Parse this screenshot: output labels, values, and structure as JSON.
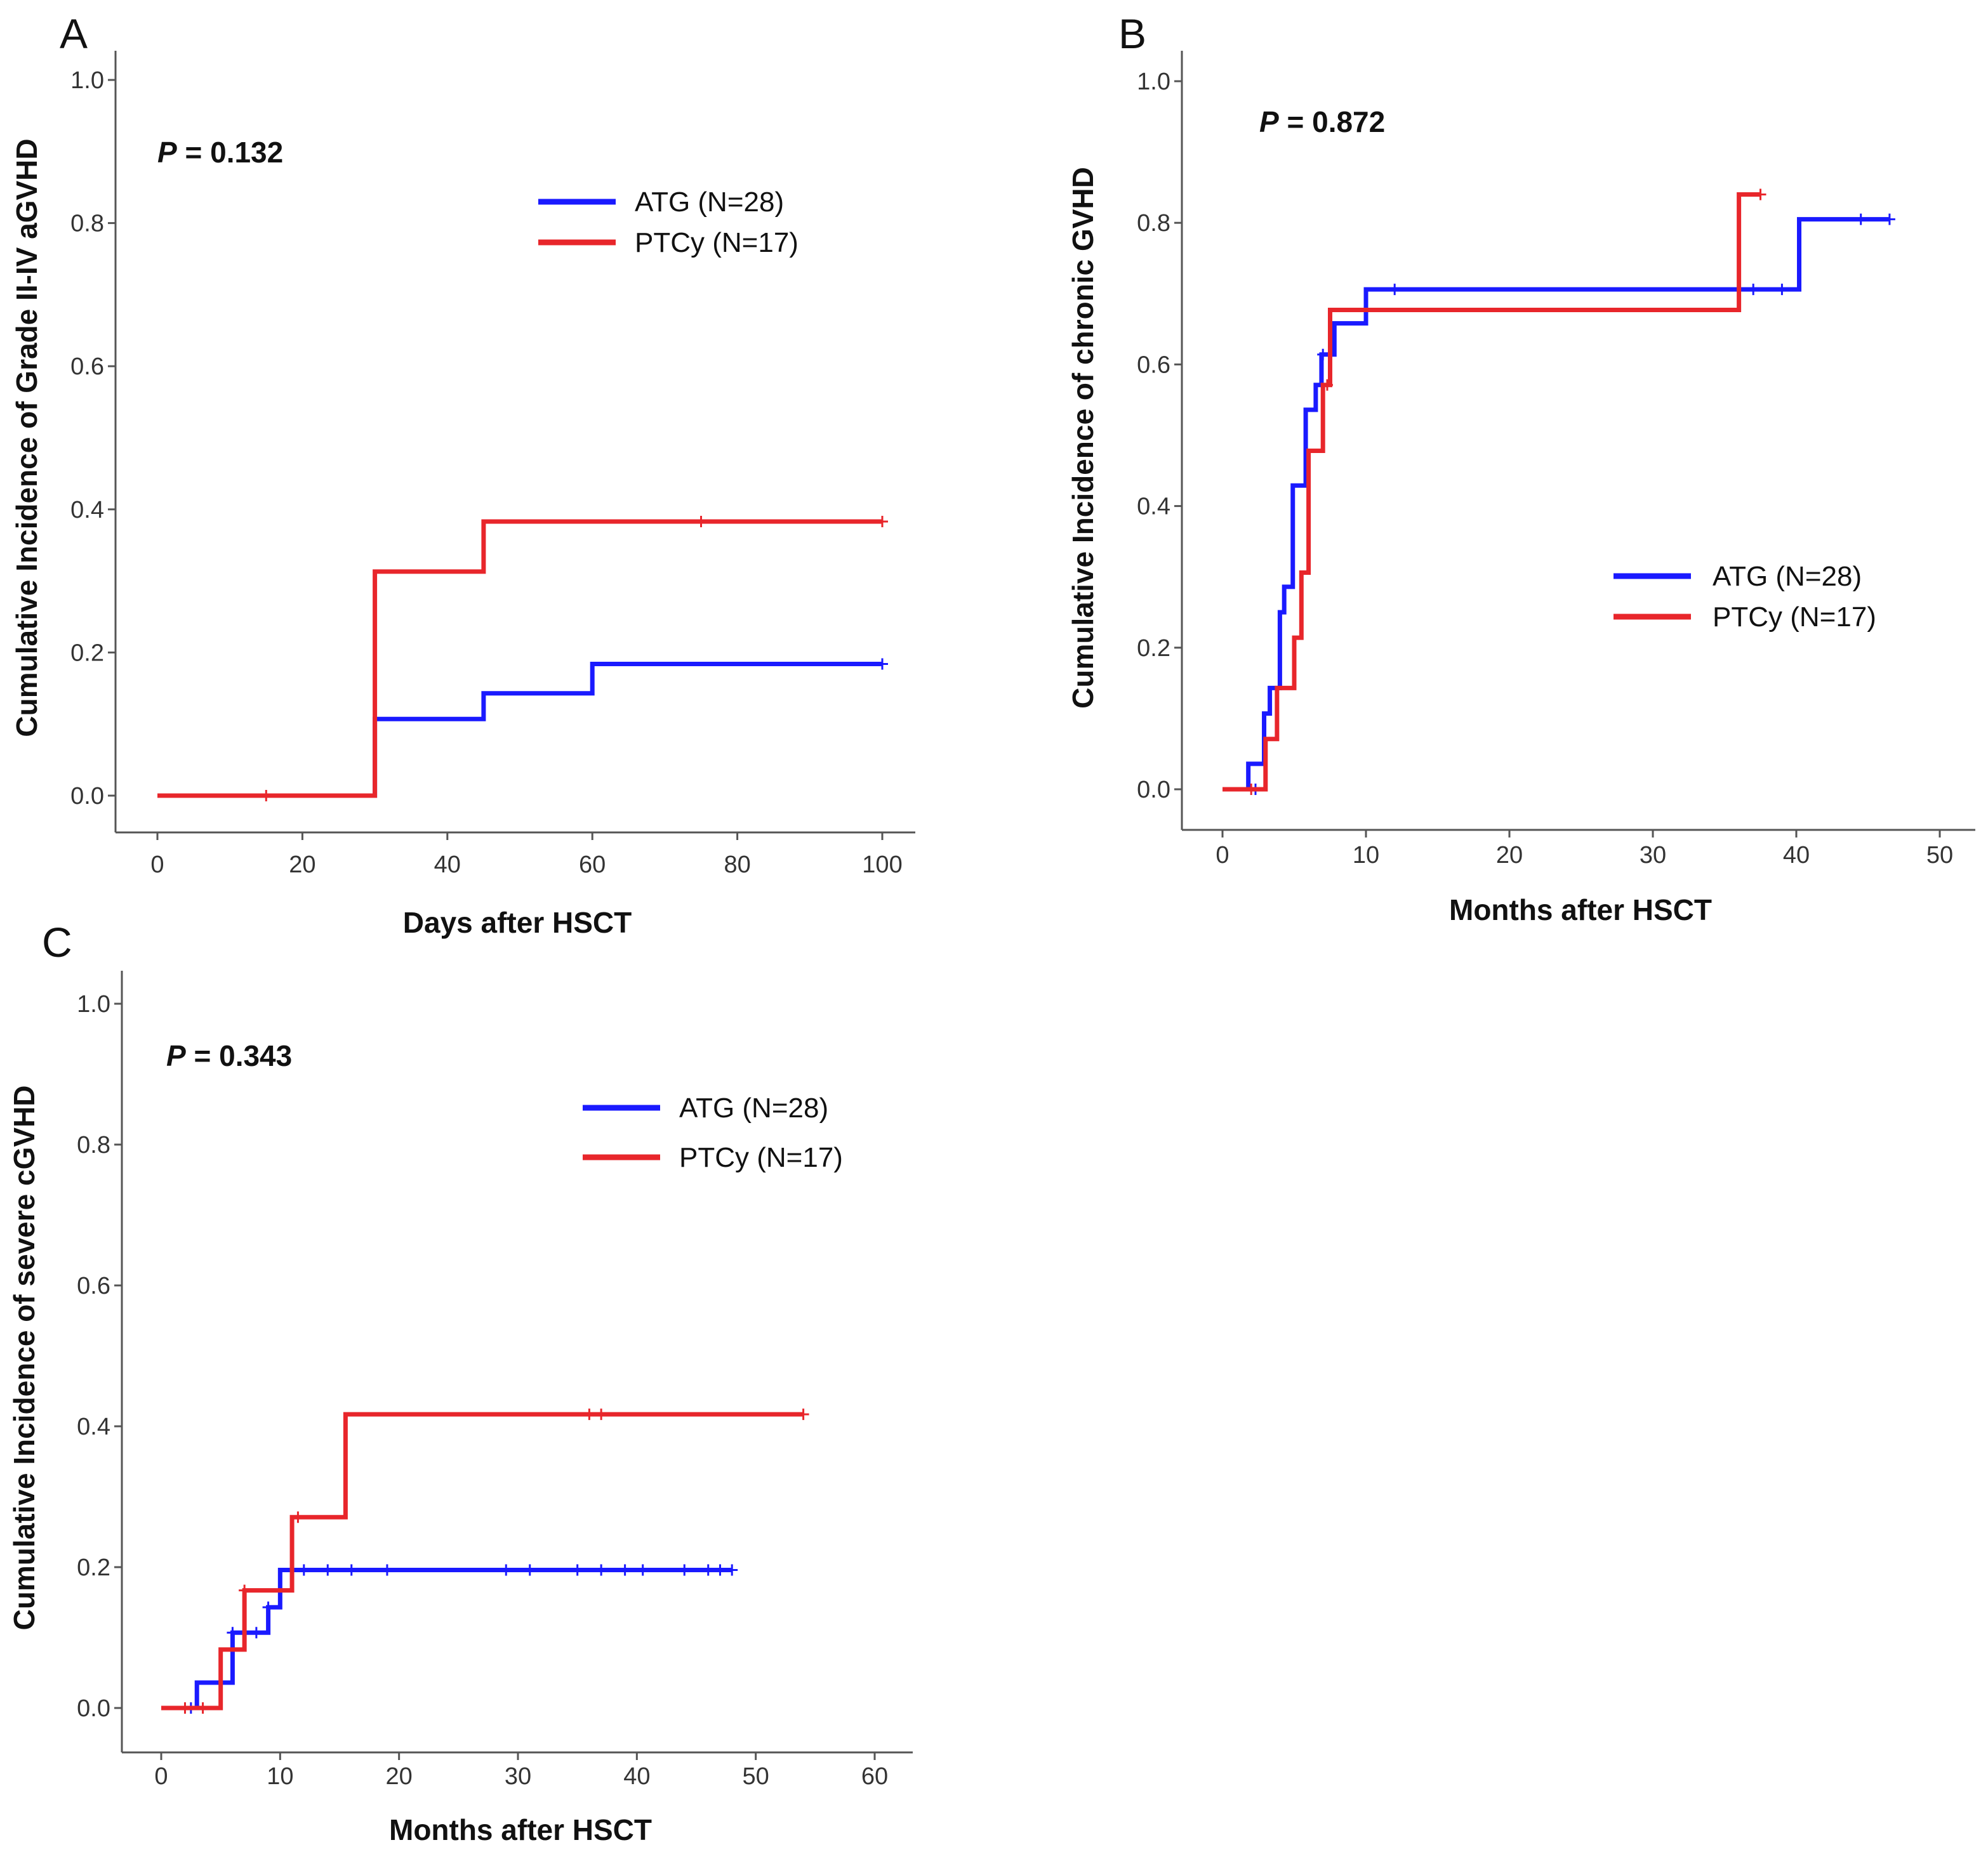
{
  "colors": {
    "ATG": "#1a1aff",
    "PTCy": "#e8262b"
  },
  "chart_data": [
    {
      "type": "line",
      "panel": "A",
      "xlabel": "Days after HSCT",
      "ylabel": "Cumulative Incidence of Grade II-IV aGVHD",
      "p_label": "P",
      "p_value": "= 0.132",
      "xlim": [
        0,
        100
      ],
      "ylim": [
        0,
        1
      ],
      "xticks": [
        0,
        20,
        40,
        60,
        80,
        100
      ],
      "yticks": [
        0.0,
        0.2,
        0.4,
        0.6,
        0.8,
        1.0
      ],
      "xtick_labels": [
        "0",
        "20",
        "40",
        "60",
        "80",
        "100"
      ],
      "ytick_labels": [
        "0.0",
        "0.2",
        "0.4",
        "0.6",
        "0.8",
        "1.0"
      ],
      "legend_position": "top-right",
      "series": [
        {
          "name": "ATG (N=28)",
          "color_key": "ATG",
          "steps": [
            [
              0,
              0
            ],
            [
              30,
              0.107
            ],
            [
              45,
              0.143
            ],
            [
              60,
              0.184
            ],
            [
              100,
              0.184
            ]
          ],
          "censored": [
            [
              100,
              0.184
            ]
          ]
        },
        {
          "name": "PTCy (N=17)",
          "color_key": "PTCy",
          "steps": [
            [
              0,
              0
            ],
            [
              30,
              0.313
            ],
            [
              45,
              0.383
            ],
            [
              100,
              0.383
            ]
          ],
          "censored": [
            [
              15,
              0
            ],
            [
              75,
              0.383
            ],
            [
              100,
              0.383
            ]
          ]
        }
      ]
    },
    {
      "type": "line",
      "panel": "B",
      "xlabel": "Months after HSCT",
      "ylabel": "Cumulative Incidence of chronic GVHD",
      "p_label": "P",
      "p_value": "= 0.872",
      "xlim": [
        0,
        50
      ],
      "ylim": [
        0,
        1
      ],
      "xticks": [
        0,
        10,
        20,
        30,
        40,
        50
      ],
      "yticks": [
        0.0,
        0.2,
        0.4,
        0.6,
        0.8,
        1.0
      ],
      "xtick_labels": [
        "0",
        "10",
        "20",
        "30",
        "40",
        "50"
      ],
      "ytick_labels": [
        "0.0",
        "0.2",
        "0.4",
        "0.6",
        "0.8",
        "1.0"
      ],
      "legend_position": "center-right",
      "series": [
        {
          "name": "ATG (N=28)",
          "color_key": "ATG",
          "steps": [
            [
              0,
              0
            ],
            [
              1.8,
              0.036
            ],
            [
              2.9,
              0.107
            ],
            [
              3.3,
              0.143
            ],
            [
              4.0,
              0.25
            ],
            [
              4.3,
              0.286
            ],
            [
              4.9,
              0.429
            ],
            [
              5.8,
              0.536
            ],
            [
              6.5,
              0.571
            ],
            [
              6.9,
              0.614
            ],
            [
              7.8,
              0.658
            ],
            [
              10,
              0.706
            ],
            [
              40.2,
              0.706
            ],
            [
              40.2,
              0.805
            ],
            [
              46.5,
              0.805
            ]
          ],
          "censored": [
            [
              2.3,
              0
            ],
            [
              7.0,
              0.614
            ],
            [
              12,
              0.706
            ],
            [
              37,
              0.706
            ],
            [
              39,
              0.706
            ],
            [
              44.5,
              0.805
            ],
            [
              46.5,
              0.805
            ]
          ]
        },
        {
          "name": "PTCy (N=17)",
          "color_key": "PTCy",
          "steps": [
            [
              0,
              0
            ],
            [
              3.0,
              0.071
            ],
            [
              3.8,
              0.143
            ],
            [
              5.0,
              0.214
            ],
            [
              5.5,
              0.306
            ],
            [
              6.0,
              0.478
            ],
            [
              7.0,
              0.571
            ],
            [
              7.5,
              0.677
            ],
            [
              36,
              0.677
            ],
            [
              36,
              0.84
            ],
            [
              37.5,
              0.84
            ]
          ],
          "censored": [
            [
              2.0,
              0
            ],
            [
              7.3,
              0.571
            ],
            [
              37.5,
              0.84
            ]
          ]
        }
      ]
    },
    {
      "type": "line",
      "panel": "C",
      "xlabel": "Months after HSCT",
      "ylabel": "Cumulative Incidence of severe cGVHD",
      "p_label": "P",
      "p_value": "= 0.343",
      "xlim": [
        0,
        60
      ],
      "ylim": [
        0,
        1
      ],
      "xticks": [
        0,
        10,
        20,
        30,
        40,
        50,
        60
      ],
      "yticks": [
        0.0,
        0.2,
        0.4,
        0.6,
        0.8,
        1.0
      ],
      "xtick_labels": [
        "0",
        "10",
        "20",
        "30",
        "40",
        "50",
        "60"
      ],
      "ytick_labels": [
        "0.0",
        "0.2",
        "0.4",
        "0.6",
        "0.8",
        "1.0"
      ],
      "legend_position": "top-right",
      "series": [
        {
          "name": "ATG (N=28)",
          "color_key": "ATG",
          "steps": [
            [
              0,
              0
            ],
            [
              3,
              0.036
            ],
            [
              6,
              0.107
            ],
            [
              9,
              0.143
            ],
            [
              10,
              0.196
            ],
            [
              48,
              0.196
            ]
          ],
          "censored": [
            [
              2.5,
              0
            ],
            [
              6,
              0.107
            ],
            [
              8,
              0.107
            ],
            [
              9,
              0.143
            ],
            [
              11,
              0.196
            ],
            [
              12,
              0.196
            ],
            [
              14,
              0.196
            ],
            [
              16,
              0.196
            ],
            [
              19,
              0.196
            ],
            [
              29,
              0.196
            ],
            [
              31,
              0.196
            ],
            [
              35,
              0.196
            ],
            [
              37,
              0.196
            ],
            [
              39,
              0.196
            ],
            [
              40.5,
              0.196
            ],
            [
              44,
              0.196
            ],
            [
              46,
              0.196
            ],
            [
              47,
              0.196
            ],
            [
              48,
              0.196
            ]
          ]
        },
        {
          "name": "PTCy (N=17)",
          "color_key": "PTCy",
          "steps": [
            [
              0,
              0
            ],
            [
              5,
              0.083
            ],
            [
              7,
              0.167
            ],
            [
              11,
              0.271
            ],
            [
              15.5,
              0.417
            ],
            [
              54,
              0.417
            ]
          ],
          "censored": [
            [
              2,
              0
            ],
            [
              3.5,
              0
            ],
            [
              7,
              0.167
            ],
            [
              11.5,
              0.271
            ],
            [
              36,
              0.417
            ],
            [
              37,
              0.417
            ],
            [
              54,
              0.417
            ]
          ]
        }
      ]
    }
  ]
}
